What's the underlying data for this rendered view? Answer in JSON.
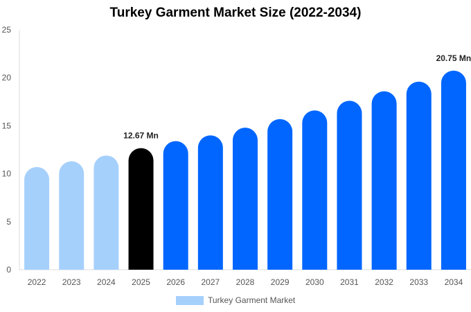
{
  "chart_data": {
    "type": "bar",
    "title": "Turkey Garment Market Size (2022-2034)",
    "xlabel": "",
    "ylabel": "",
    "categories": [
      "2022",
      "2023",
      "2024",
      "2025",
      "2026",
      "2027",
      "2028",
      "2029",
      "2030",
      "2031",
      "2032",
      "2033",
      "2034"
    ],
    "series": [
      {
        "name": "Turkey Garment Market",
        "values": [
          10.7,
          11.3,
          11.9,
          12.67,
          13.4,
          14.0,
          14.8,
          15.7,
          16.6,
          17.6,
          18.6,
          19.6,
          20.75
        ]
      }
    ],
    "data_labels": [
      {
        "category": "2025",
        "text": "12.67 Mn"
      },
      {
        "category": "2034",
        "text": "20.75 Mn"
      }
    ],
    "ylim": [
      0,
      25
    ],
    "yticks": [
      0,
      5,
      10,
      15,
      20,
      25
    ],
    "grid": false,
    "legend": "bottom",
    "colors": {
      "historical": "#a6d0fc",
      "current": "#000000",
      "forecast": "#0066ff",
      "legend_swatch": "#a6d0fc"
    },
    "highlight": {
      "historical_until": "2024",
      "current": "2025"
    }
  }
}
